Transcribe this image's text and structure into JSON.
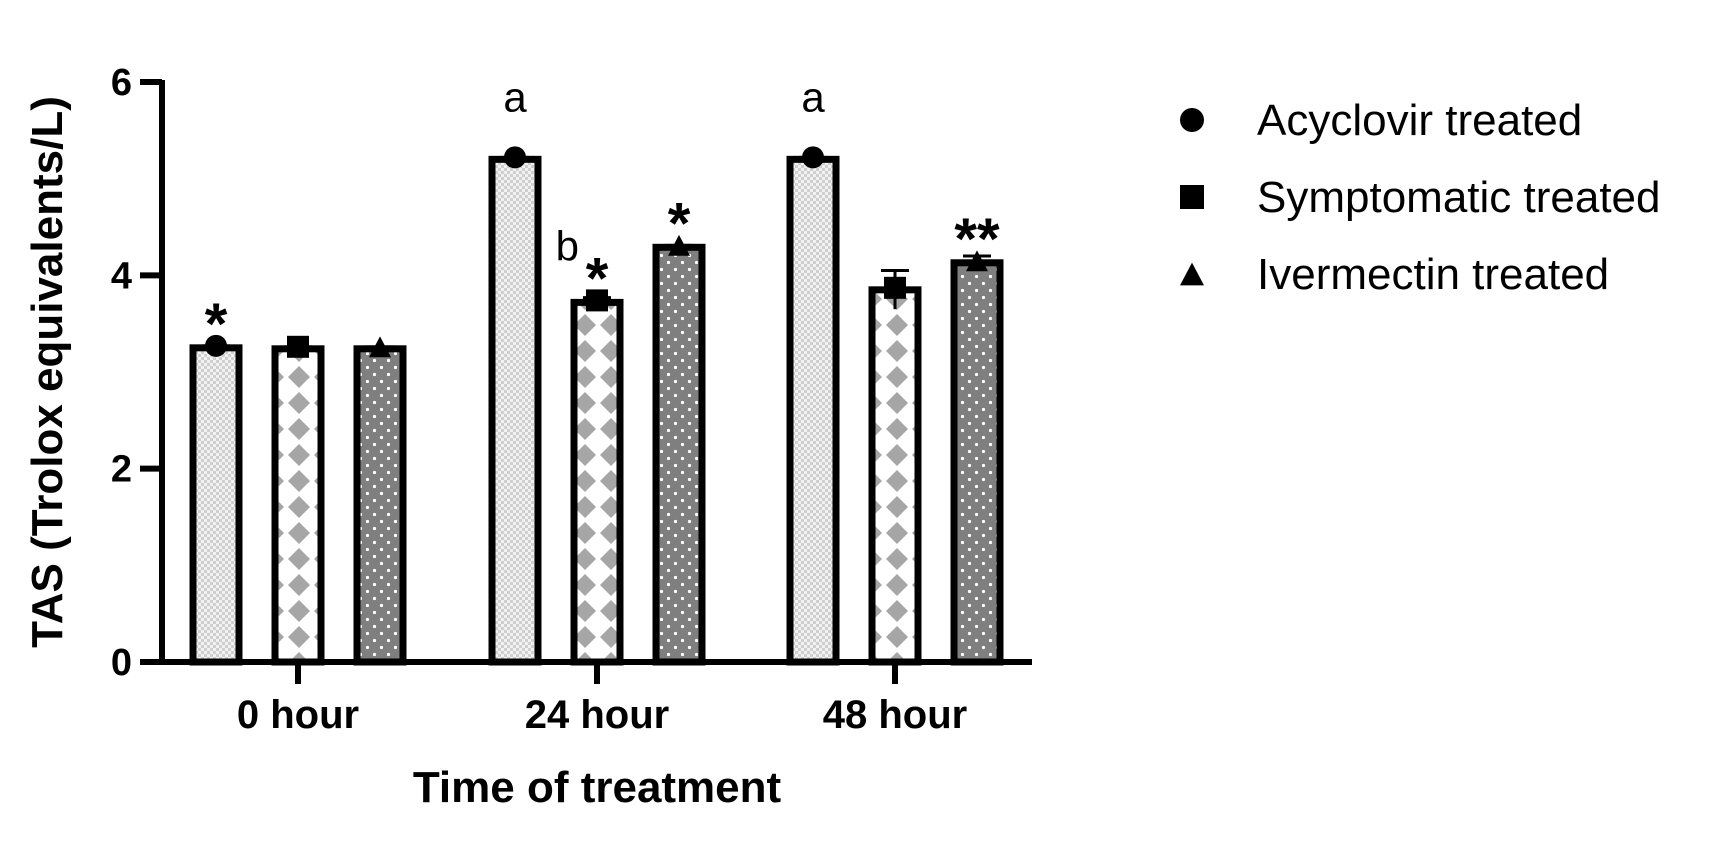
{
  "chart_data": {
    "type": "bar",
    "xlabel": "Time of treatment",
    "ylabel": "TAS (Trolox equivalents/L)",
    "ylim": [
      0,
      6
    ],
    "yticks": [
      0,
      2,
      4,
      6
    ],
    "categories": [
      "0 hour",
      "24 hour",
      "48 hour"
    ],
    "series": [
      {
        "name": "Acyclovir treated",
        "marker": "circle",
        "pattern": "fine-check",
        "values": [
          3.25,
          5.2,
          5.2
        ],
        "errors": [
          0.02,
          0.02,
          0.02
        ]
      },
      {
        "name": "Symptomatic treated",
        "marker": "square",
        "pattern": "diamond",
        "values": [
          3.24,
          3.72,
          3.85
        ],
        "errors": [
          0.02,
          0.05,
          0.2
        ]
      },
      {
        "name": "Ivermectin treated",
        "marker": "triangle",
        "pattern": "dots",
        "values": [
          3.24,
          4.29,
          4.13
        ],
        "errors": [
          0.02,
          0.02,
          0.07
        ]
      }
    ],
    "annotations": [
      {
        "category": 0,
        "series": 0,
        "text": "*",
        "kind": "star"
      },
      {
        "category": 1,
        "series": 0,
        "text": "a",
        "kind": "letter"
      },
      {
        "category": 1,
        "series": 1,
        "text": "b",
        "kind": "letter-left"
      },
      {
        "category": 1,
        "series": 1,
        "text": "*",
        "kind": "star"
      },
      {
        "category": 1,
        "series": 2,
        "text": "*",
        "kind": "star"
      },
      {
        "category": 2,
        "series": 0,
        "text": "a",
        "kind": "letter"
      },
      {
        "category": 2,
        "series": 2,
        "text": "**",
        "kind": "star"
      }
    ],
    "legend_position": "right",
    "grid": false
  },
  "colors": {
    "bar_outline": "#000000",
    "check_light": "#f2f2f2",
    "check_dark": "#cfcfcf",
    "diamond_fill": "#a6a6a6",
    "dots_bg": "#7f7f7f",
    "dots_fg": "#ffffff"
  }
}
